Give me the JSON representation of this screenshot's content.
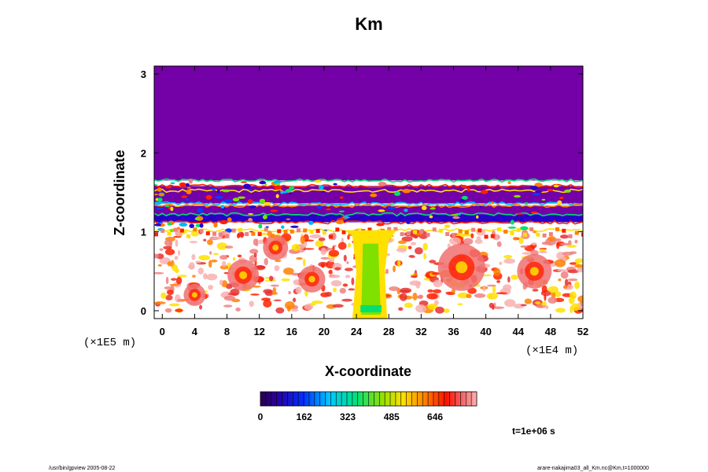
{
  "chart_data": {
    "type": "heatmap",
    "title": "Km",
    "xlabel": "X-coordinate",
    "ylabel": "Z-coordinate",
    "x_scale_label": "(×1E4 m)",
    "y_scale_label": "(×1E5 m)",
    "xlim": [
      -1,
      52
    ],
    "ylim": [
      -0.1,
      3.1
    ],
    "x_ticks": [
      0,
      4,
      8,
      12,
      16,
      20,
      24,
      28,
      32,
      36,
      40,
      44,
      48,
      52
    ],
    "y_ticks": [
      0,
      1,
      2,
      3
    ],
    "colorbar": {
      "ticks": [
        0,
        162,
        323,
        485,
        646
      ],
      "range": [
        0,
        800
      ]
    },
    "time_label": "t=1e+06 s",
    "regions": {
      "upper_uniform": {
        "z_min": 1.65,
        "value": 0
      },
      "layered_band": {
        "z_min": 1.0,
        "z_max": 1.65
      },
      "turbulent_layer": {
        "z_min": 0.0,
        "z_max": 1.0
      },
      "plume": {
        "x_min": 24,
        "x_max": 27.5,
        "value_range": [
          300,
          500
        ]
      }
    },
    "colors": {
      "uniform": "#7400a8",
      "background": "#ffffff"
    }
  },
  "footer": {
    "left": "/usr/bin/gpview 2005-08-22",
    "right": "arare-nakajima03_all_Km.nc@Km,t=1000000"
  }
}
